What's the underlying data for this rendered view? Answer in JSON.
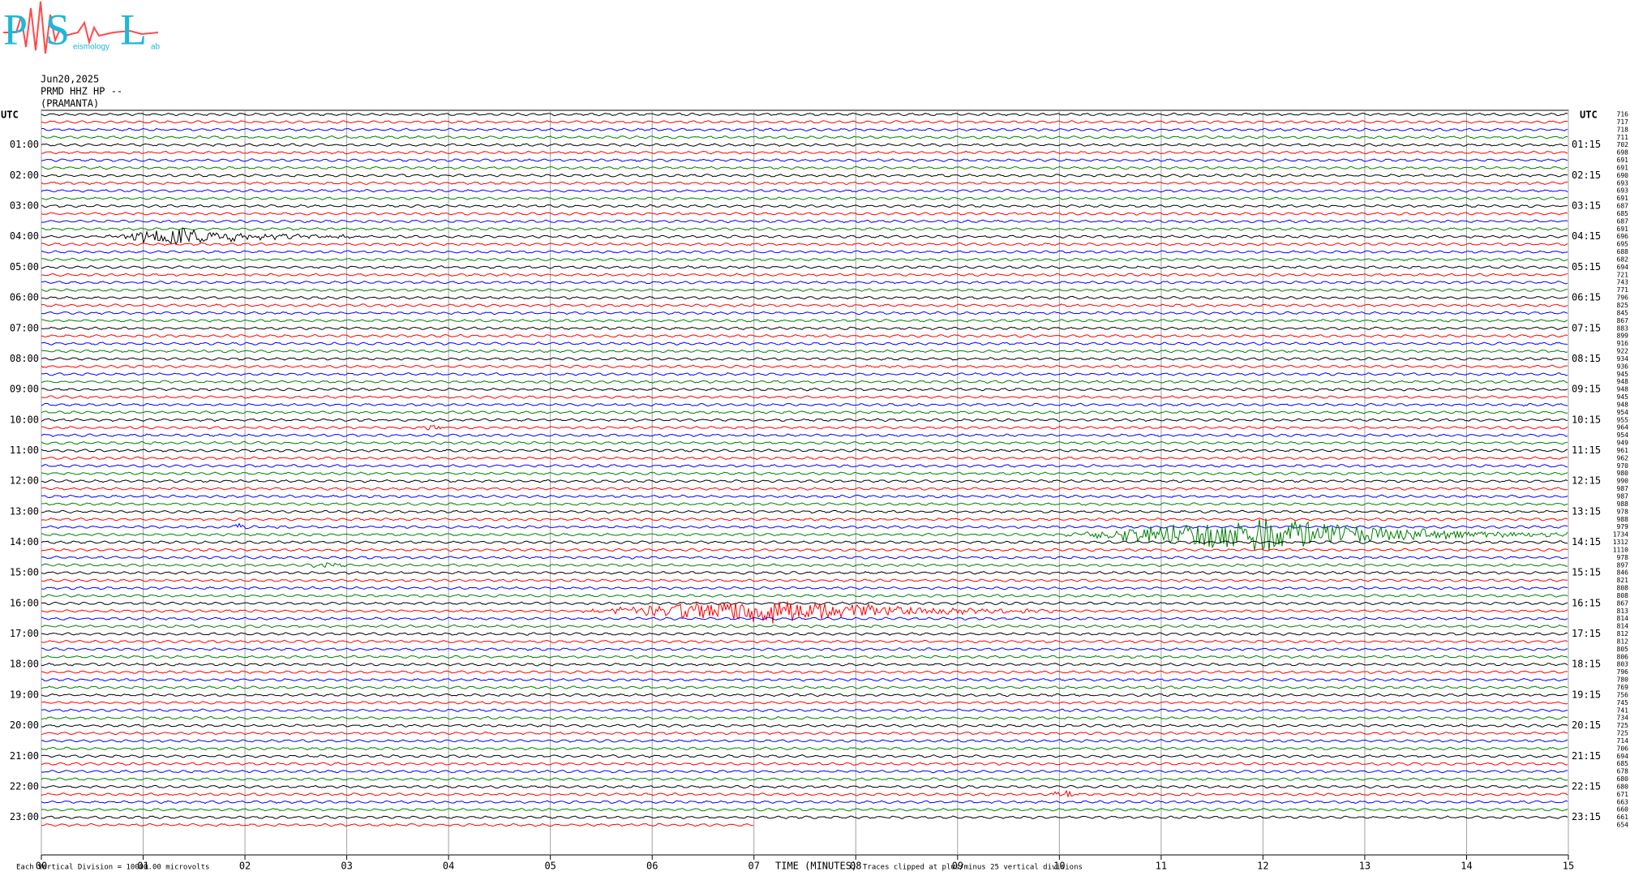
{
  "chart_data": {
    "type": "helicorder",
    "logo": {
      "letters": [
        "P",
        "S",
        "L"
      ],
      "words": [
        "eismology",
        "ab"
      ]
    },
    "date": "Jun20,2025",
    "station": "PRMD HHZ HP --",
    "site": "(PRAMANTA)",
    "left_axis_label": "UTC",
    "right_axis_label": "UTC",
    "left_labels": [
      "01:00",
      "02:00",
      "03:00",
      "04:00",
      "05:00",
      "06:00",
      "07:00",
      "08:00",
      "09:00",
      "10:00",
      "11:00",
      "12:00",
      "13:00",
      "14:00",
      "15:00",
      "16:00",
      "17:00",
      "18:00",
      "19:00",
      "20:00",
      "21:00",
      "22:00",
      "23:00"
    ],
    "right_labels": [
      "01:15",
      "02:15",
      "03:15",
      "04:15",
      "05:15",
      "06:15",
      "07:15",
      "08:15",
      "09:15",
      "10:15",
      "11:15",
      "12:15",
      "13:15",
      "14:15",
      "15:15",
      "16:15",
      "17:15",
      "18:15",
      "19:15",
      "20:15",
      "21:15",
      "22:15",
      "23:15"
    ],
    "row_values": [
      716,
      717,
      718,
      711,
      702,
      698,
      691,
      691,
      690,
      693,
      693,
      691,
      687,
      685,
      687,
      691,
      696,
      695,
      688,
      682,
      694,
      721,
      743,
      771,
      796,
      825,
      845,
      867,
      883,
      899,
      916,
      922,
      934,
      936,
      945,
      948,
      948,
      945,
      948,
      954,
      955,
      964,
      954,
      949,
      961,
      962,
      970,
      980,
      990,
      987,
      987,
      988,
      978,
      988,
      979,
      1734,
      1312,
      1110,
      978,
      897,
      846,
      821,
      808,
      808,
      867,
      813,
      814,
      814,
      812,
      812,
      805,
      806,
      803,
      796,
      780,
      769,
      756,
      745,
      741,
      734,
      725,
      725,
      714,
      706,
      694,
      685,
      678,
      680,
      680,
      671,
      663,
      660,
      661,
      654
    ],
    "trace_colors": [
      "#000000",
      "#ff0000",
      "#0000ff",
      "#007f00"
    ],
    "xlim": [
      0,
      15
    ],
    "xticks": [
      {
        "value": 0,
        "label": "00"
      },
      {
        "value": 1,
        "label": "01"
      },
      {
        "value": 2,
        "label": "02"
      },
      {
        "value": 3,
        "label": "03"
      },
      {
        "value": 4,
        "label": "04"
      },
      {
        "value": 5,
        "label": "05"
      },
      {
        "value": 6,
        "label": "06"
      },
      {
        "value": 7,
        "label": "07"
      },
      {
        "value": 8,
        "label": "08"
      },
      {
        "value": 9,
        "label": "09"
      },
      10,
      11,
      12,
      13,
      14,
      15
    ],
    "xlabel": "TIME (MINUTES)",
    "scale_note": "Each Vertical Division = 10000.00 microvolts",
    "clip_note": "Traces clipped at plus/minus 25 vertical divisions",
    "grid": true
  }
}
